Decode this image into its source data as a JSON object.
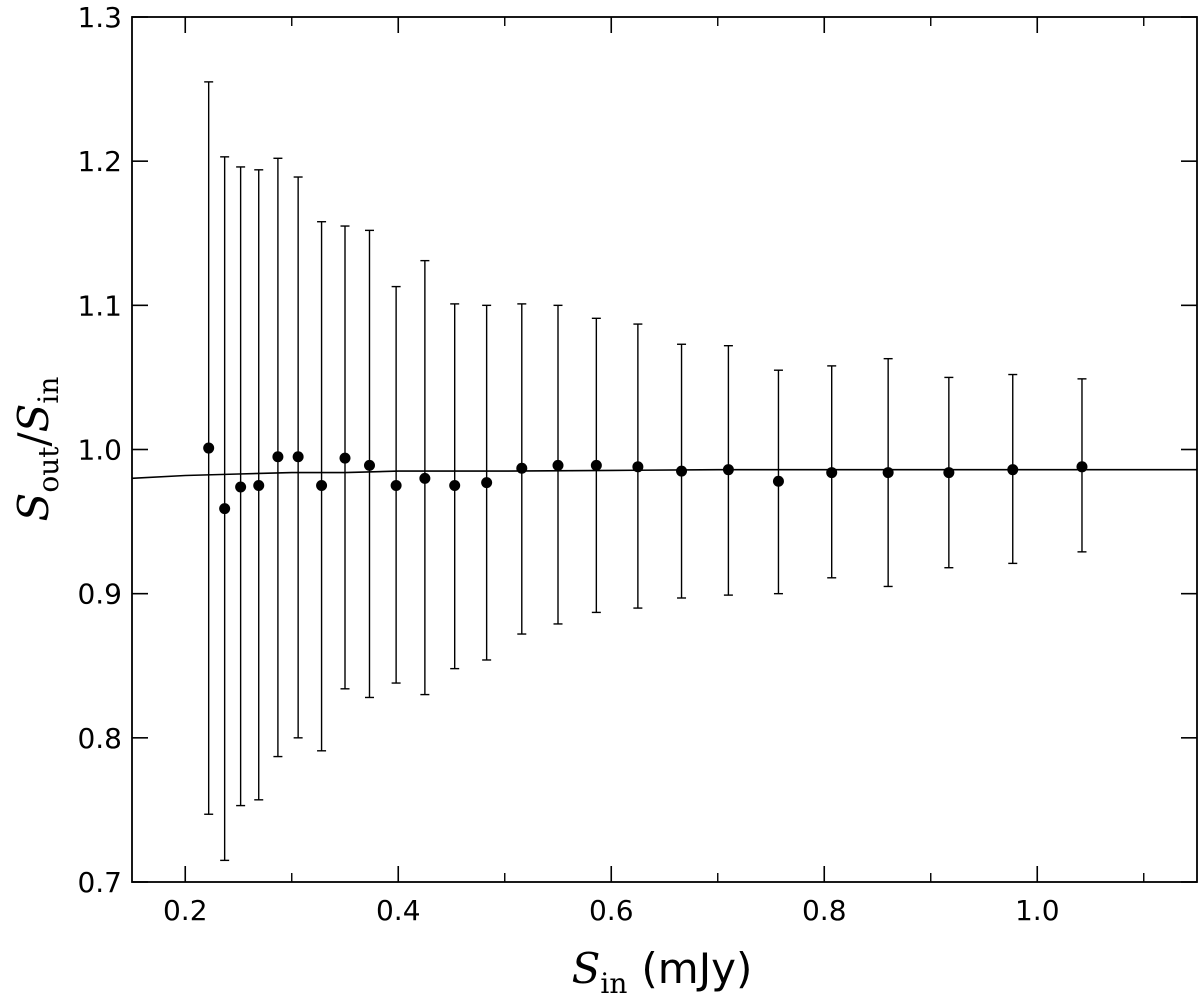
{
  "chart_data": {
    "type": "scatter",
    "xlabel": {
      "symbol": "S",
      "subscript": "in",
      "unit": "(mJy)"
    },
    "ylabel": {
      "num_symbol": "S",
      "num_sub": "out",
      "sep": "/",
      "den_symbol": "S",
      "den_sub": "in"
    },
    "xlim": [
      0.15,
      1.15
    ],
    "ylim": [
      0.7,
      1.3
    ],
    "x_ticks": [
      0.2,
      0.4,
      0.6,
      0.8,
      1.0
    ],
    "x_tick_labels": [
      "0.2",
      "0.4",
      "0.6",
      "0.8",
      "1.0"
    ],
    "y_ticks": [
      0.7,
      0.8,
      0.9,
      1.0,
      1.1,
      1.2,
      1.3
    ],
    "y_tick_labels": [
      "0.7",
      "0.8",
      "0.9",
      "1.0",
      "1.1",
      "1.2",
      "1.3"
    ],
    "grid": false,
    "series": [
      {
        "kind": "points-with-errorbars",
        "color": "#000000",
        "x": [
          0.222,
          0.237,
          0.252,
          0.269,
          0.287,
          0.306,
          0.328,
          0.35,
          0.373,
          0.398,
          0.425,
          0.453,
          0.483,
          0.516,
          0.55,
          0.586,
          0.625,
          0.666,
          0.71,
          0.757,
          0.807,
          0.86,
          0.917,
          0.977,
          1.042
        ],
        "y": [
          1.001,
          0.959,
          0.974,
          0.975,
          0.995,
          0.995,
          0.975,
          0.994,
          0.989,
          0.975,
          0.98,
          0.975,
          0.977,
          0.987,
          0.989,
          0.989,
          0.988,
          0.985,
          0.986,
          0.978,
          0.984,
          0.984,
          0.984,
          0.986,
          0.988
        ],
        "y_low": [
          0.747,
          0.715,
          0.753,
          0.757,
          0.787,
          0.8,
          0.791,
          0.834,
          0.828,
          0.838,
          0.83,
          0.848,
          0.854,
          0.872,
          0.879,
          0.887,
          0.89,
          0.897,
          0.899,
          0.9,
          0.911,
          0.905,
          0.918,
          0.921,
          0.929
        ],
        "y_high": [
          1.255,
          1.203,
          1.196,
          1.194,
          1.202,
          1.189,
          1.158,
          1.155,
          1.152,
          1.113,
          1.131,
          1.101,
          1.1,
          1.101,
          1.1,
          1.091,
          1.087,
          1.073,
          1.072,
          1.055,
          1.058,
          1.063,
          1.05,
          1.052,
          1.049
        ]
      },
      {
        "kind": "line",
        "color": "#000000",
        "x": [
          0.15,
          0.2,
          0.25,
          0.3,
          0.35,
          0.4,
          0.5,
          0.6,
          0.7,
          0.8,
          0.9,
          1.0,
          1.15
        ],
        "y": [
          0.98,
          0.982,
          0.983,
          0.984,
          0.984,
          0.985,
          0.985,
          0.9855,
          0.986,
          0.986,
          0.986,
          0.986,
          0.986
        ]
      }
    ]
  }
}
